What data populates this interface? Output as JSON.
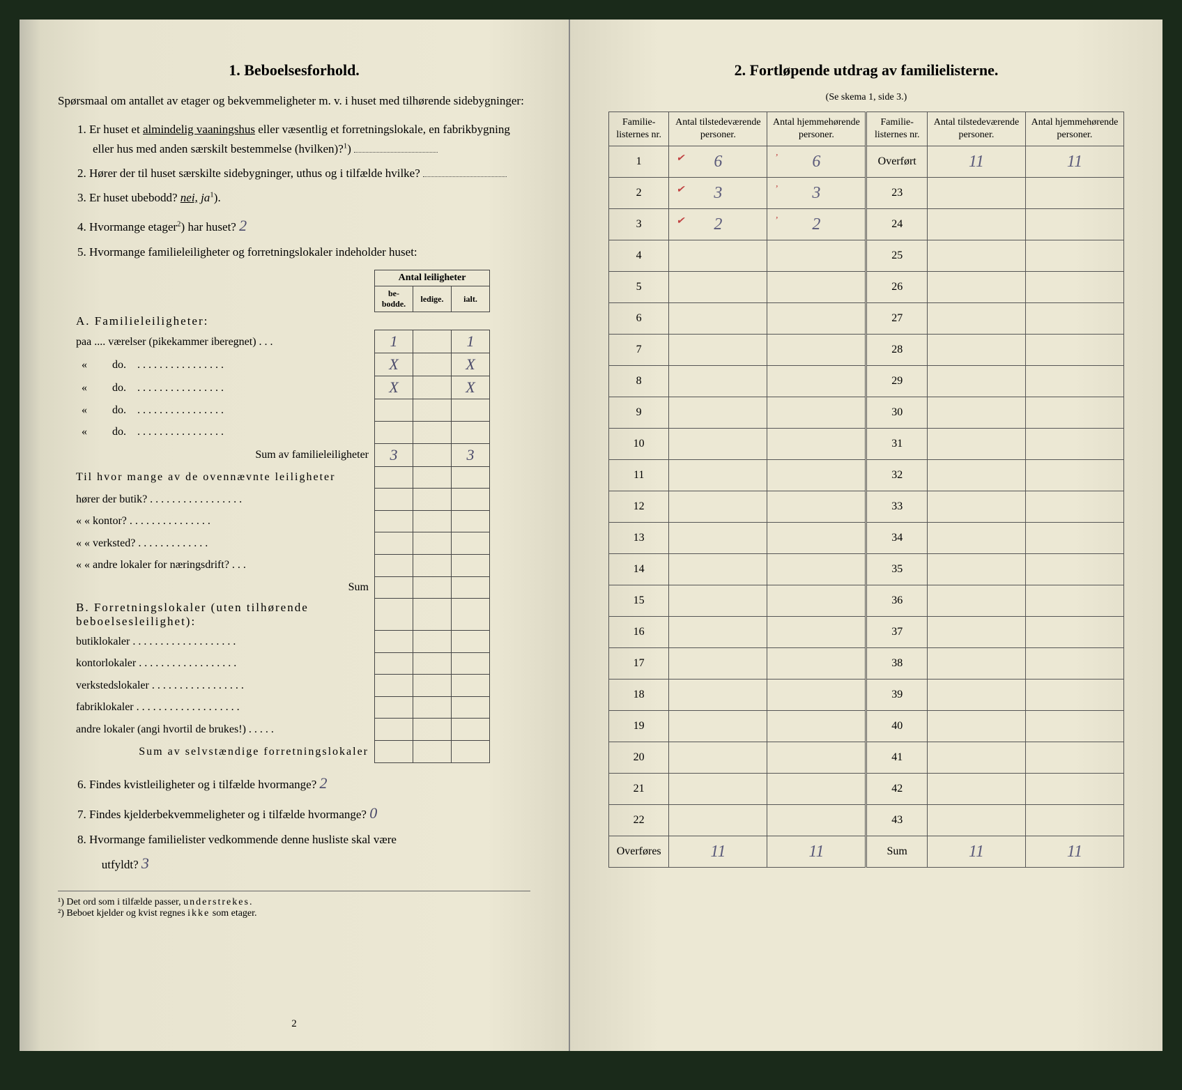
{
  "left": {
    "title": "1.  Beboelsesforhold.",
    "intro": "Spørsmaal om antallet av etager og bekvemmeligheter m. v. i huset med tilhørende sidebygninger:",
    "q1": "1. Er huset et almindelig vaaningshus eller væsentlig et forretningslokale, en fabrikbygning eller hus med anden særskilt bestemmelse (hvilken)?",
    "q2": "2. Hører der til huset særskilte sidebygninger, uthus og i tilfælde hvilke?",
    "q3a": "3. Er huset ubebodd?",
    "q3b_nei": "nei,",
    "q3b_ja": "ja",
    "q4a": "4. Hvormange etager",
    "q4b": "har huset?",
    "q4_ans": "2",
    "q5": "5. Hvormange familieleiligheter og forretningslokaler indeholder huset:",
    "tbl_header": "Antal leiligheter",
    "tbl_h1": "be-bodde.",
    "tbl_h2": "ledige.",
    "tbl_h3": "ialt.",
    "secA": "A. Familieleiligheter:",
    "rowA1": "paa .... værelser (pikekammer iberegnet) . . .",
    "rowA_do": "do.",
    "sumA": "Sum av familieleiligheter",
    "til_q": "Til hvor mange av de ovennævnte leiligheter",
    "til1": "hører der butik? . . . . . . . . . . . . . . . . .",
    "til2": "«     «   kontor? . . . . . . . . . . . . . . .",
    "til3": "«     «   verksted? . . . . . . . . . . . . .",
    "til4": "«     «   andre lokaler for næringsdrift? . . .",
    "til_sum": "Sum",
    "secB": "B. Forretningslokaler (uten tilhørende beboelsesleilighet):",
    "rowB1": "butiklokaler . . . . . . . . . . . . . . . . . . .",
    "rowB2": "kontorlokaler . . . . . . . . . . . . . . . . . .",
    "rowB3": "verkstedslokaler . . . . . . . . . . . . . . . . .",
    "rowB4": "fabriklokaler . . . . . . . . . . . . . . . . . . .",
    "rowB5": "andre lokaler (angi hvortil de brukes!) . . . . .",
    "sumB": "Sum av selvstændige forretningslokaler",
    "q6": "6. Findes kvistleiligheter og i tilfælde hvormange?",
    "q6_ans": "2",
    "q7": "7. Findes kjelderbekvemmeligheter og i tilfælde hvormange?",
    "q7_ans": "0",
    "q8a": "8. Hvormange familielister vedkommende denne husliste skal være",
    "q8b": "utfyldt?",
    "q8_ans": "3",
    "fn1": "¹) Det ord som i tilfælde passer, understrekes.",
    "fn2": "²) Beboet kjelder og kvist regnes ikke som etager.",
    "pgnum": "2",
    "cellA1_1": "1",
    "cellA1_3": "1",
    "cellA2_1": "X",
    "cellA2_3": "X",
    "cellA3_1": "X",
    "cellA3_3": "X",
    "sumA_1": "3",
    "sumA_3": "3"
  },
  "right": {
    "title": "2.  Fortløpende utdrag av familielisterne.",
    "sub": "(Se skema 1, side 3.)",
    "h_nr": "Familie-listernes nr.",
    "h_til": "Antal tilstedeværende personer.",
    "h_hjem": "Antal hjemmehørende personer.",
    "overfort": "Overført",
    "overfores": "Overføres",
    "sum": "Sum",
    "left_rows": [
      "1",
      "2",
      "3",
      "4",
      "5",
      "6",
      "7",
      "8",
      "9",
      "10",
      "11",
      "12",
      "13",
      "14",
      "15",
      "16",
      "17",
      "18",
      "19",
      "20",
      "21",
      "22"
    ],
    "right_rows": [
      "23",
      "24",
      "25",
      "26",
      "27",
      "28",
      "29",
      "30",
      "31",
      "32",
      "33",
      "34",
      "35",
      "36",
      "37",
      "38",
      "39",
      "40",
      "41",
      "42",
      "43"
    ],
    "r1c1": "6",
    "r1c2": "6",
    "r2c1": "3",
    "r2c2": "3",
    "r3c1": "2",
    "r3c2": "2",
    "ov_c1": "11",
    "ov_c2": "11",
    "of_c1": "11",
    "of_c2": "11",
    "sum_c1": "11",
    "sum_c2": "11"
  }
}
